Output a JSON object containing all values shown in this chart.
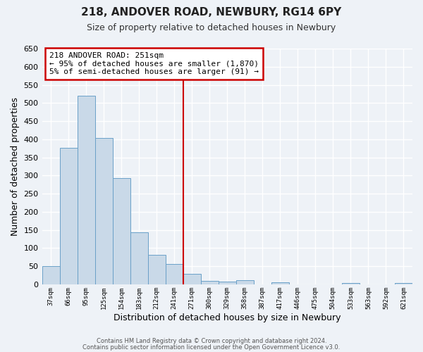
{
  "title": "218, ANDOVER ROAD, NEWBURY, RG14 6PY",
  "subtitle": "Size of property relative to detached houses in Newbury",
  "xlabel": "Distribution of detached houses by size in Newbury",
  "ylabel": "Number of detached properties",
  "bar_labels": [
    "37sqm",
    "66sqm",
    "95sqm",
    "125sqm",
    "154sqm",
    "183sqm",
    "212sqm",
    "241sqm",
    "271sqm",
    "300sqm",
    "329sqm",
    "358sqm",
    "387sqm",
    "417sqm",
    "446sqm",
    "475sqm",
    "504sqm",
    "533sqm",
    "563sqm",
    "592sqm",
    "621sqm"
  ],
  "bar_values": [
    51,
    377,
    519,
    403,
    292,
    143,
    82,
    57,
    28,
    9,
    7,
    12,
    0,
    5,
    0,
    0,
    0,
    3,
    0,
    0,
    4
  ],
  "bar_color": "#c9d9e8",
  "bar_edgecolor": "#6aa0c8",
  "ylim": [
    0,
    650
  ],
  "yticks": [
    0,
    50,
    100,
    150,
    200,
    250,
    300,
    350,
    400,
    450,
    500,
    550,
    600,
    650
  ],
  "vline_x": 7.5,
  "vline_color": "#cc0000",
  "annotation_title": "218 ANDOVER ROAD: 251sqm",
  "annotation_line1": "← 95% of detached houses are smaller (1,870)",
  "annotation_line2": "5% of semi-detached houses are larger (91) →",
  "annotation_box_color": "#cc0000",
  "background_color": "#eef2f7",
  "grid_color": "#ffffff",
  "footer_line1": "Contains HM Land Registry data © Crown copyright and database right 2024.",
  "footer_line2": "Contains public sector information licensed under the Open Government Licence v3.0."
}
